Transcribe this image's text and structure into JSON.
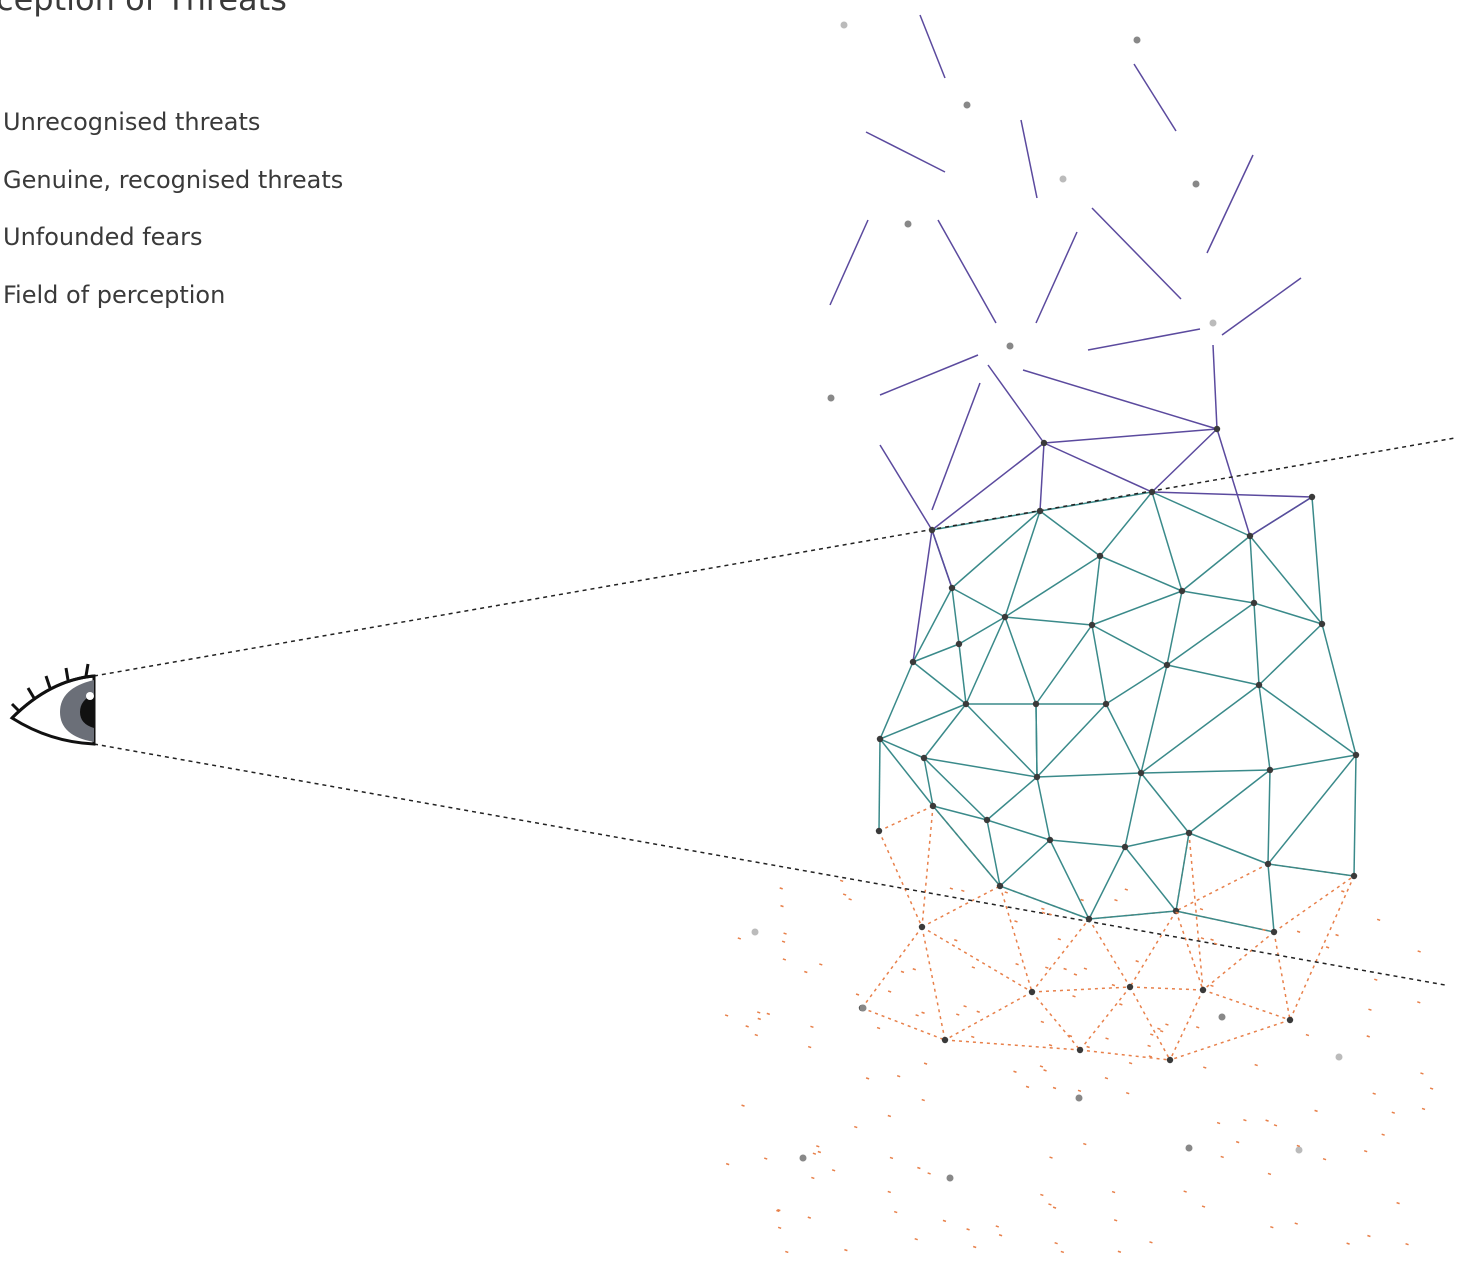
{
  "header": {
    "title": "ception of Threats"
  },
  "legend": {
    "items": [
      "Unrecognised threats",
      "Genuine, recognised threats",
      "Unfounded fears",
      "Field of perception"
    ]
  }
}
